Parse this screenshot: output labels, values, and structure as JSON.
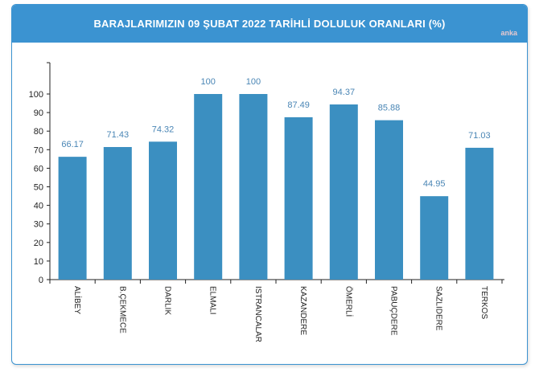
{
  "header": {
    "title": "BARAJLARIMIZIN 09 ŞUBAT 2022 TARİHLİ DOLULUK ORANLARI (%)",
    "watermark": "anka"
  },
  "colors": {
    "header": "#3b93d1",
    "bar": "#3b8fc1",
    "label": "#4a86b5"
  },
  "chart_data": {
    "type": "bar",
    "title": "BARAJLARIMIZIN 09 ŞUBAT 2022 TARİHLİ DOLULUK ORANLARI (%)",
    "categories": [
      "ALİBEY",
      "B.ÇEKMECE",
      "DARLIK",
      "ELMALI",
      "ISTRANCALAR",
      "KAZANDERE",
      "ÖMERLİ",
      "PABUÇDERE",
      "SAZLIDERE",
      "TERKOS"
    ],
    "values": [
      66.17,
      71.43,
      74.32,
      100,
      100,
      87.49,
      94.37,
      85.88,
      44.95,
      71.03
    ],
    "value_labels": [
      "66.17",
      "71.43",
      "74.32",
      "100",
      "100",
      "87.49",
      "94.37",
      "85.88",
      "44.95",
      "71.03"
    ],
    "ylim": [
      0,
      100
    ],
    "yticks": [
      "0",
      "10",
      "20",
      "30",
      "40",
      "50",
      "60",
      "70",
      "80",
      "90",
      "100"
    ],
    "xlabel": "",
    "ylabel": "",
    "grid": false
  }
}
